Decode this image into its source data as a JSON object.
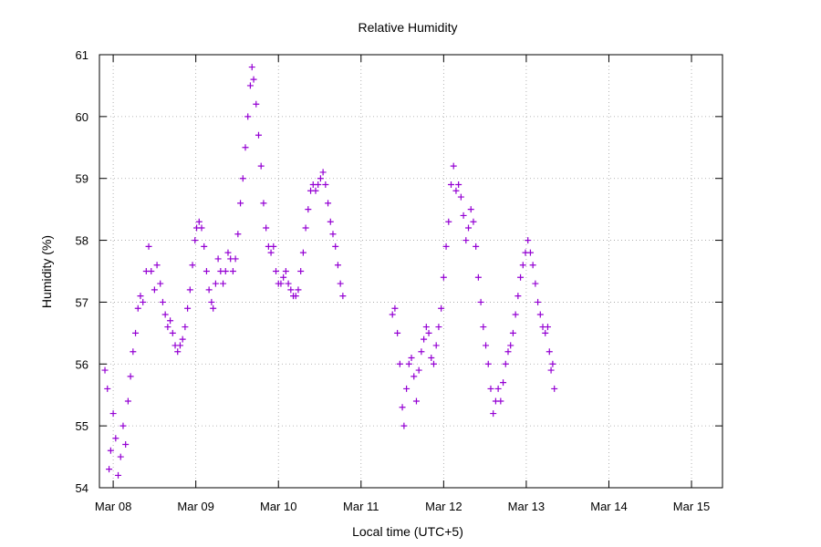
{
  "chart_data": {
    "type": "scatter",
    "title": "Relative Humidity",
    "xlabel": "Local time (UTC+5)",
    "ylabel": "Humidity (%)",
    "x_ticks": [
      "Mar 08",
      "Mar 09",
      "Mar 10",
      "Mar 11",
      "Mar 12",
      "Mar 13",
      "Mar 14",
      "Mar 15"
    ],
    "xlim": [
      "2021-03-07T20:00",
      "2021-03-15T09:00"
    ],
    "ylim": [
      54,
      61
    ],
    "y_ticks": [
      54,
      55,
      56,
      57,
      58,
      59,
      60,
      61
    ],
    "grid": true,
    "marker": "+",
    "colors": {
      "series": "#9400d3",
      "grid": "#a0a0a0",
      "axis": "#000000"
    },
    "series": [
      {
        "x_unit": "days since Mar 08 00:00",
        "points": [
          [
            -0.1,
            55.9
          ],
          [
            -0.07,
            55.6
          ],
          [
            -0.05,
            54.3
          ],
          [
            -0.03,
            54.6
          ],
          [
            0.0,
            55.2
          ],
          [
            0.03,
            54.8
          ],
          [
            0.06,
            54.2
          ],
          [
            0.09,
            54.5
          ],
          [
            0.12,
            55.0
          ],
          [
            0.15,
            54.7
          ],
          [
            0.18,
            55.4
          ],
          [
            0.21,
            55.8
          ],
          [
            0.24,
            56.2
          ],
          [
            0.27,
            56.5
          ],
          [
            0.3,
            56.9
          ],
          [
            0.33,
            57.1
          ],
          [
            0.36,
            57.0
          ],
          [
            0.4,
            57.5
          ],
          [
            0.43,
            57.9
          ],
          [
            0.46,
            57.5
          ],
          [
            0.5,
            57.2
          ],
          [
            0.53,
            57.6
          ],
          [
            0.57,
            57.3
          ],
          [
            0.6,
            57.0
          ],
          [
            0.63,
            56.8
          ],
          [
            0.66,
            56.6
          ],
          [
            0.69,
            56.7
          ],
          [
            0.72,
            56.5
          ],
          [
            0.75,
            56.3
          ],
          [
            0.78,
            56.2
          ],
          [
            0.81,
            56.3
          ],
          [
            0.84,
            56.4
          ],
          [
            0.87,
            56.6
          ],
          [
            0.9,
            56.9
          ],
          [
            0.93,
            57.2
          ],
          [
            0.96,
            57.6
          ],
          [
            0.99,
            58.0
          ],
          [
            1.01,
            58.2
          ],
          [
            1.04,
            58.3
          ],
          [
            1.07,
            58.2
          ],
          [
            1.1,
            57.9
          ],
          [
            1.13,
            57.5
          ],
          [
            1.16,
            57.2
          ],
          [
            1.19,
            57.0
          ],
          [
            1.21,
            56.9
          ],
          [
            1.24,
            57.3
          ],
          [
            1.27,
            57.7
          ],
          [
            1.3,
            57.5
          ],
          [
            1.33,
            57.3
          ],
          [
            1.36,
            57.5
          ],
          [
            1.39,
            57.8
          ],
          [
            1.42,
            57.7
          ],
          [
            1.45,
            57.5
          ],
          [
            1.48,
            57.7
          ],
          [
            1.51,
            58.1
          ],
          [
            1.54,
            58.6
          ],
          [
            1.57,
            59.0
          ],
          [
            1.6,
            59.5
          ],
          [
            1.63,
            60.0
          ],
          [
            1.66,
            60.5
          ],
          [
            1.68,
            60.8
          ],
          [
            1.7,
            60.6
          ],
          [
            1.73,
            60.2
          ],
          [
            1.76,
            59.7
          ],
          [
            1.79,
            59.2
          ],
          [
            1.82,
            58.6
          ],
          [
            1.85,
            58.2
          ],
          [
            1.88,
            57.9
          ],
          [
            1.91,
            57.8
          ],
          [
            1.94,
            57.9
          ],
          [
            1.97,
            57.5
          ],
          [
            2.0,
            57.3
          ],
          [
            2.03,
            57.3
          ],
          [
            2.06,
            57.4
          ],
          [
            2.09,
            57.5
          ],
          [
            2.12,
            57.3
          ],
          [
            2.15,
            57.2
          ],
          [
            2.18,
            57.1
          ],
          [
            2.21,
            57.1
          ],
          [
            2.24,
            57.2
          ],
          [
            2.27,
            57.5
          ],
          [
            2.3,
            57.8
          ],
          [
            2.33,
            58.2
          ],
          [
            2.36,
            58.5
          ],
          [
            2.39,
            58.8
          ],
          [
            2.42,
            58.9
          ],
          [
            2.45,
            58.8
          ],
          [
            2.48,
            58.9
          ],
          [
            2.51,
            59.0
          ],
          [
            2.54,
            59.1
          ],
          [
            2.57,
            58.9
          ],
          [
            2.6,
            58.6
          ],
          [
            2.63,
            58.3
          ],
          [
            2.66,
            58.1
          ],
          [
            2.69,
            57.9
          ],
          [
            2.72,
            57.6
          ],
          [
            2.75,
            57.3
          ],
          [
            2.78,
            57.1
          ],
          [
            3.38,
            56.8
          ],
          [
            3.41,
            56.9
          ],
          [
            3.44,
            56.5
          ],
          [
            3.47,
            56.0
          ],
          [
            3.5,
            55.3
          ],
          [
            3.52,
            55.0
          ],
          [
            3.55,
            55.6
          ],
          [
            3.58,
            56.0
          ],
          [
            3.61,
            56.1
          ],
          [
            3.64,
            55.8
          ],
          [
            3.67,
            55.4
          ],
          [
            3.7,
            55.9
          ],
          [
            3.73,
            56.2
          ],
          [
            3.76,
            56.4
          ],
          [
            3.79,
            56.6
          ],
          [
            3.82,
            56.5
          ],
          [
            3.85,
            56.1
          ],
          [
            3.88,
            56.0
          ],
          [
            3.91,
            56.3
          ],
          [
            3.94,
            56.6
          ],
          [
            3.97,
            56.9
          ],
          [
            4.0,
            57.4
          ],
          [
            4.03,
            57.9
          ],
          [
            4.06,
            58.3
          ],
          [
            4.09,
            58.9
          ],
          [
            4.12,
            59.2
          ],
          [
            4.15,
            58.8
          ],
          [
            4.18,
            58.9
          ],
          [
            4.21,
            58.7
          ],
          [
            4.24,
            58.4
          ],
          [
            4.27,
            58.0
          ],
          [
            4.3,
            58.2
          ],
          [
            4.33,
            58.5
          ],
          [
            4.36,
            58.3
          ],
          [
            4.39,
            57.9
          ],
          [
            4.42,
            57.4
          ],
          [
            4.45,
            57.0
          ],
          [
            4.48,
            56.6
          ],
          [
            4.51,
            56.3
          ],
          [
            4.54,
            56.0
          ],
          [
            4.57,
            55.6
          ],
          [
            4.6,
            55.2
          ],
          [
            4.63,
            55.4
          ],
          [
            4.66,
            55.6
          ],
          [
            4.69,
            55.4
          ],
          [
            4.72,
            55.7
          ],
          [
            4.75,
            56.0
          ],
          [
            4.78,
            56.2
          ],
          [
            4.81,
            56.3
          ],
          [
            4.84,
            56.5
          ],
          [
            4.87,
            56.8
          ],
          [
            4.9,
            57.1
          ],
          [
            4.93,
            57.4
          ],
          [
            4.96,
            57.6
          ],
          [
            4.99,
            57.8
          ],
          [
            5.02,
            58.0
          ],
          [
            5.05,
            57.8
          ],
          [
            5.08,
            57.6
          ],
          [
            5.11,
            57.3
          ],
          [
            5.14,
            57.0
          ],
          [
            5.17,
            56.8
          ],
          [
            5.2,
            56.6
          ],
          [
            5.23,
            56.5
          ],
          [
            5.26,
            56.6
          ],
          [
            5.28,
            56.2
          ],
          [
            5.3,
            55.9
          ],
          [
            5.32,
            56.0
          ],
          [
            5.34,
            55.6
          ]
        ]
      }
    ]
  }
}
